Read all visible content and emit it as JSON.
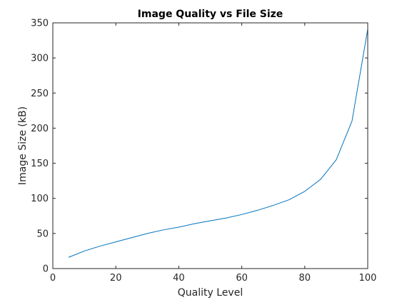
{
  "chart_data": {
    "type": "line",
    "title": "Image Quality vs File Size",
    "xlabel": "Quality Level",
    "ylabel": "Image Size (kB)",
    "xlim": [
      0,
      100
    ],
    "ylim": [
      0,
      350
    ],
    "xticks": [
      0,
      20,
      40,
      60,
      80,
      100
    ],
    "yticks": [
      0,
      50,
      100,
      150,
      200,
      250,
      300,
      350
    ],
    "grid": false,
    "legend": "none",
    "series": [
      {
        "x": [
          5,
          10,
          15,
          20,
          25,
          30,
          35,
          40,
          45,
          50,
          55,
          60,
          65,
          70,
          75,
          80,
          85,
          90,
          95,
          100
        ],
        "values": [
          16,
          25,
          32,
          38,
          44,
          50,
          55,
          59,
          64,
          68,
          72,
          77,
          83,
          90,
          98,
          110,
          127,
          155,
          210,
          341
        ],
        "color": "#0072BD"
      }
    ]
  }
}
